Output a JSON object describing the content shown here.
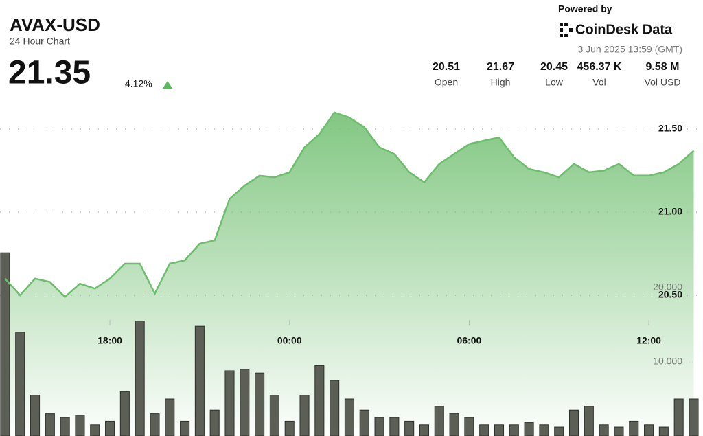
{
  "header": {
    "symbol": "AVAX-USD",
    "subtitle": "24 Hour Chart",
    "price": "21.35",
    "change": "4.12%",
    "powered_by": "Powered by",
    "brand": "CoinDesk Data",
    "timestamp": "3 Jun 2025 13:59 (GMT)"
  },
  "stats": [
    {
      "value": "20.51",
      "label": "Open"
    },
    {
      "value": "21.67",
      "label": "High"
    },
    {
      "value": "20.45",
      "label": "Low"
    },
    {
      "value": "456.37 K",
      "label": "Vol"
    },
    {
      "value": "9.58 M",
      "label": "Vol USD"
    }
  ],
  "chart_data": [
    {
      "type": "area",
      "color": "#6cbd6c",
      "x": [
        14.5,
        15,
        15.5,
        16,
        16.5,
        17,
        17.5,
        18,
        18.5,
        19,
        19.5,
        20,
        20.5,
        21,
        21.5,
        22,
        22.5,
        23,
        23.5,
        24,
        24.5,
        25,
        25.5,
        26,
        26.5,
        27,
        27.5,
        28,
        28.5,
        29,
        29.5,
        30,
        30.5,
        31,
        31.5,
        32,
        32.5,
        33,
        33.5,
        34,
        34.5,
        35,
        35.5,
        36,
        36.5,
        37,
        37.5
      ],
      "values": [
        20.6,
        20.5,
        20.6,
        20.58,
        20.49,
        20.57,
        20.54,
        20.6,
        20.69,
        20.69,
        20.51,
        20.69,
        20.71,
        20.81,
        20.83,
        21.08,
        21.16,
        21.22,
        21.21,
        21.24,
        21.39,
        21.47,
        21.6,
        21.57,
        21.51,
        21.39,
        21.35,
        21.24,
        21.18,
        21.29,
        21.35,
        21.41,
        21.43,
        21.45,
        21.33,
        21.26,
        21.24,
        21.21,
        21.29,
        21.24,
        21.25,
        21.29,
        21.22,
        21.22,
        21.24,
        21.29,
        21.37
      ],
      "xlim": [
        14.33,
        37.81
      ],
      "xticks": [
        {
          "value": 18,
          "label": "18:00"
        },
        {
          "value": 24,
          "label": "00:00"
        },
        {
          "value": 30,
          "label": "06:00"
        },
        {
          "value": 36,
          "label": "12:00"
        }
      ],
      "ylim": [
        20.35,
        21.7
      ],
      "yticks": [
        {
          "value": 20.5,
          "label": "20.50"
        },
        {
          "value": 21,
          "label": "21.00"
        },
        {
          "value": 21.5,
          "label": "21.50"
        }
      ],
      "grid": true
    },
    {
      "type": "bar",
      "color": "#5b5f56",
      "x": [
        14.5,
        15,
        15.5,
        16,
        16.5,
        17,
        17.5,
        18,
        18.5,
        19,
        19.5,
        20,
        20.5,
        21,
        21.5,
        22,
        22.5,
        23,
        23.5,
        24,
        24.5,
        25,
        25.5,
        26,
        26.5,
        27,
        27.5,
        28,
        28.5,
        29,
        29.5,
        30,
        30.5,
        31,
        31.5,
        32,
        32.5,
        33,
        33.5,
        34,
        34.5,
        35,
        35.5,
        36,
        36.5,
        37,
        37.5
      ],
      "values": [
        24700,
        14000,
        5500,
        3000,
        2500,
        2800,
        1500,
        2000,
        6000,
        15500,
        3000,
        5000,
        2000,
        14800,
        3500,
        8800,
        9000,
        8500,
        5500,
        2000,
        5500,
        9500,
        7500,
        5000,
        3500,
        2500,
        2500,
        2000,
        1500,
        4000,
        3000,
        2500,
        1500,
        1500,
        1500,
        1800,
        1500,
        1200,
        3500,
        4000,
        1500,
        1200,
        2000,
        1500,
        1200,
        5000,
        5000
      ],
      "xlim": [
        14.33,
        37.81
      ],
      "ylim": [
        0,
        25000
      ],
      "yticks": [
        {
          "value": 10000,
          "label": "10,000"
        },
        {
          "value": 20000,
          "label": "20,000"
        }
      ]
    }
  ]
}
